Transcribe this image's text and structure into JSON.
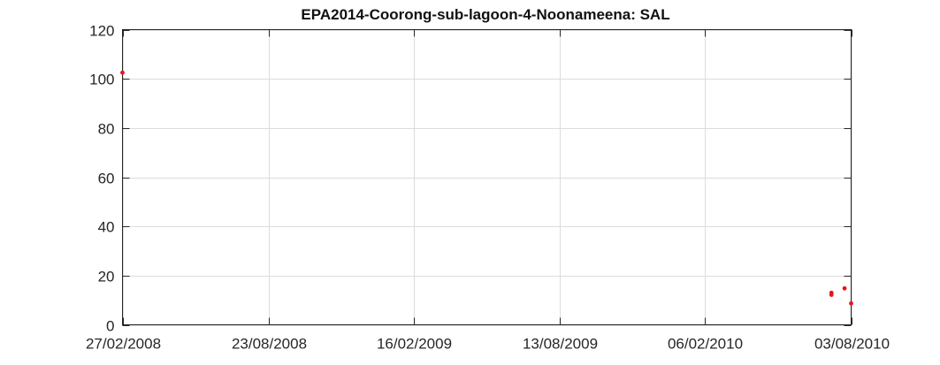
{
  "chart_data": {
    "type": "scatter",
    "title": "EPA2014-Coorong-sub-lagoon-4-Noonameena: SAL",
    "xlabel": "",
    "ylabel": "",
    "x_axis": "date",
    "xlim": [
      "2008-02-27",
      "2010-08-03"
    ],
    "ylim": [
      0,
      120
    ],
    "x_ticks": [
      {
        "date": "2008-02-27",
        "label": "27/02/2008"
      },
      {
        "date": "2008-08-23",
        "label": "23/08/2008"
      },
      {
        "date": "2009-02-16",
        "label": "16/02/2009"
      },
      {
        "date": "2009-08-13",
        "label": "13/08/2009"
      },
      {
        "date": "2010-02-06",
        "label": "06/02/2010"
      },
      {
        "date": "2010-08-03",
        "label": "03/08/2010"
      }
    ],
    "y_ticks": [
      0,
      20,
      40,
      60,
      80,
      100,
      120
    ],
    "grid": true,
    "marker_color": "#e8141b",
    "series": [
      {
        "points": [
          {
            "x": "2008-02-27",
            "y": 102.5
          },
          {
            "x": "2010-07-10",
            "y": 13.0
          },
          {
            "x": "2010-07-10",
            "y": 12.2
          },
          {
            "x": "2010-07-26",
            "y": 14.8
          },
          {
            "x": "2010-08-03",
            "y": 8.7
          }
        ]
      }
    ]
  }
}
